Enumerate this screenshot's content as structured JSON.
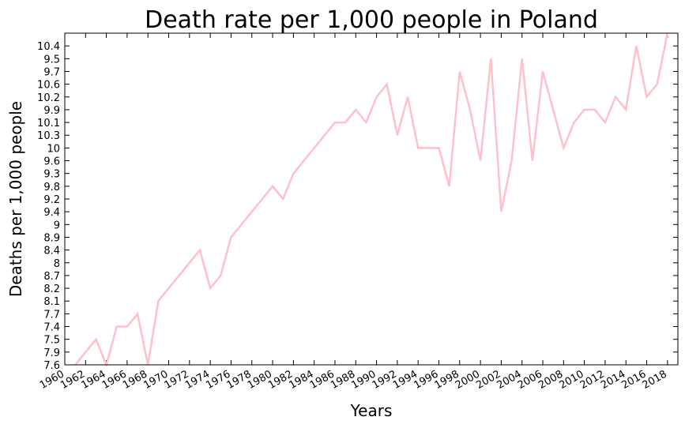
{
  "chart_data": {
    "type": "line",
    "title": "Death rate per 1,000 people in Poland",
    "x_label": "Years",
    "y_label": "Deaths per 1,000 people",
    "x": [
      1961,
      1963,
      1964,
      1965,
      1966,
      1967,
      1968,
      1969,
      1973,
      1974,
      1975,
      1976,
      1980,
      1981,
      1982,
      1986,
      1987,
      1988,
      1989,
      1990,
      1991,
      1992,
      1993,
      1994,
      1995,
      1996,
      1997,
      1998,
      1999,
      2000,
      2001,
      2002,
      2003,
      2004,
      2005,
      2006,
      2008,
      2009,
      2010,
      2011,
      2012,
      2013,
      2014,
      2015,
      2016,
      2017,
      2018
    ],
    "series": [
      {
        "name": "Death rate",
        "color": "#ffc0cb",
        "values": [
          7.6,
          7.5,
          7.6,
          7.4,
          7.4,
          7.7,
          7.6,
          8.1,
          8.4,
          8.2,
          8.7,
          8.9,
          9.8,
          9.2,
          9.3,
          10.1,
          10.1,
          9.9,
          10.1,
          10.2,
          10.6,
          10.3,
          10.2,
          10,
          10,
          10,
          9.8,
          9.7,
          9.9,
          9.6,
          9.5,
          9.4,
          9.6,
          9.5,
          9.6,
          9.7,
          10,
          10.1,
          9.9,
          9.9,
          10.1,
          10.2,
          9.9,
          10.4,
          10.2,
          10.6,
          10.8
        ]
      }
    ],
    "xlim": [
      1960,
      2019
    ],
    "xticks": [
      1960,
      1962,
      1964,
      1966,
      1968,
      1970,
      1972,
      1974,
      1976,
      1978,
      1980,
      1982,
      1984,
      1986,
      1988,
      1990,
      1992,
      1994,
      1996,
      1998,
      2000,
      2002,
      2004,
      2006,
      2008,
      2010,
      2012,
      2014,
      2016,
      2018
    ],
    "ylim": [
      0,
      26
    ],
    "yticks": [
      {
        "value": 0,
        "label": "7.6"
      },
      {
        "value": 1,
        "label": "7.9"
      },
      {
        "value": 2,
        "label": "7.5"
      },
      {
        "value": 3,
        "label": "7.4"
      },
      {
        "value": 4,
        "label": "7.7"
      },
      {
        "value": 5,
        "label": "8.1"
      },
      {
        "value": 6,
        "label": "8.2"
      },
      {
        "value": 7,
        "label": "8.7"
      },
      {
        "value": 8,
        "label": "8"
      },
      {
        "value": 9,
        "label": "8.4"
      },
      {
        "value": 10,
        "label": "8.9"
      },
      {
        "value": 11,
        "label": "9"
      },
      {
        "value": 12,
        "label": "9.4"
      },
      {
        "value": 13,
        "label": "9.2"
      },
      {
        "value": 14,
        "label": "9.8"
      },
      {
        "value": 15,
        "label": "9.3"
      },
      {
        "value": 16,
        "label": "9.6"
      },
      {
        "value": 17,
        "label": "10"
      },
      {
        "value": 18,
        "label": "10.3"
      },
      {
        "value": 19,
        "label": "10.1"
      },
      {
        "value": 20,
        "label": "9.9"
      },
      {
        "value": 21,
        "label": "10.2"
      },
      {
        "value": 22,
        "label": "10.6"
      },
      {
        "value": 23,
        "label": "9.7"
      },
      {
        "value": 24,
        "label": "9.5"
      },
      {
        "value": 25,
        "label": "10.4"
      }
    ]
  }
}
